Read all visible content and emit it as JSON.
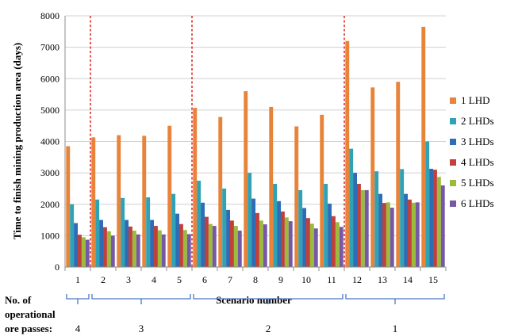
{
  "chart_data": {
    "type": "bar",
    "ylabel": "Time to finish mining production area (days)",
    "xlabel": "Scenario number",
    "ylim": [
      0,
      8000
    ],
    "yticks": [
      0,
      1000,
      2000,
      3000,
      4000,
      5000,
      6000,
      7000,
      8000
    ],
    "grid": true,
    "legend_position": "right",
    "categories": [
      "1",
      "2",
      "3",
      "4",
      "5",
      "6",
      "7",
      "8",
      "9",
      "10",
      "11",
      "12",
      "13",
      "14",
      "15"
    ],
    "series": [
      {
        "name": "1 LHD",
        "color": "#E8833A",
        "values": [
          3850,
          4130,
          4200,
          4180,
          4500,
          5070,
          4780,
          5600,
          5100,
          4480,
          4850,
          7200,
          5720,
          5900,
          7650
        ]
      },
      {
        "name": "2 LHDs",
        "color": "#2FA3B5",
        "values": [
          2000,
          2150,
          2200,
          2220,
          2330,
          2750,
          2500,
          3000,
          2650,
          2450,
          2650,
          3770,
          3050,
          3120,
          4000
        ]
      },
      {
        "name": "3 LHDs",
        "color": "#2E6DB4",
        "values": [
          1400,
          1500,
          1500,
          1500,
          1700,
          2050,
          1820,
          2180,
          2100,
          1880,
          2020,
          3000,
          2330,
          2330,
          3130
        ]
      },
      {
        "name": "4 LHDs",
        "color": "#C0403B",
        "values": [
          1030,
          1270,
          1290,
          1310,
          1370,
          1600,
          1480,
          1720,
          1770,
          1560,
          1620,
          2650,
          2040,
          2150,
          3100
        ]
      },
      {
        "name": "5 LHDs",
        "color": "#9BBB3B",
        "values": [
          950,
          1140,
          1160,
          1170,
          1180,
          1370,
          1310,
          1480,
          1580,
          1380,
          1430,
          2450,
          2060,
          2050,
          2870
        ]
      },
      {
        "name": "6 LHDs",
        "color": "#7658A6",
        "values": [
          870,
          1000,
          1040,
          1040,
          1050,
          1310,
          1160,
          1360,
          1460,
          1230,
          1280,
          2450,
          1890,
          2060,
          2600
        ]
      }
    ],
    "separators_after_category": [
      "1",
      "5",
      "11"
    ],
    "separator_color": "#E03030",
    "passes_label_lines": [
      "No. of",
      "operational",
      "ore passes:"
    ],
    "pass_groups": [
      {
        "from": "1",
        "to": "1",
        "label": "4"
      },
      {
        "from": "2",
        "to": "5",
        "label": "3"
      },
      {
        "from": "6",
        "to": "11",
        "label": "2"
      },
      {
        "from": "12",
        "to": "15",
        "label": "1"
      }
    ],
    "bracket_color": "#4A78C8",
    "grid_color": "#D0D0D0"
  }
}
